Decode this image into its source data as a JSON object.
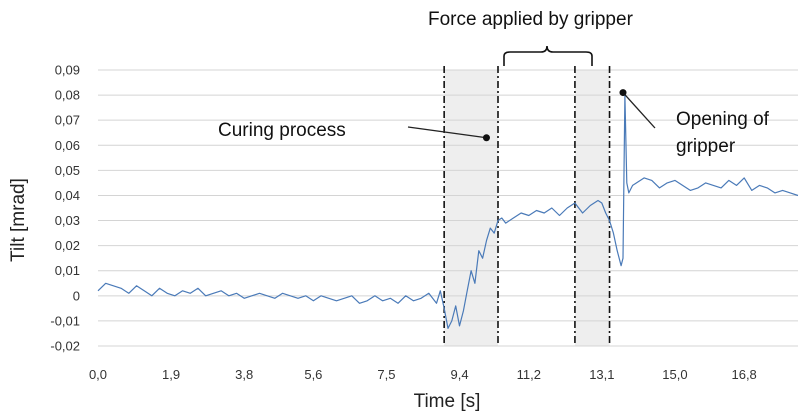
{
  "chart_data": {
    "type": "line",
    "xlabel": "Time [s]",
    "ylabel": "Tilt [mrad]",
    "ylim": [
      -0.02,
      0.09
    ],
    "xlim": [
      0.0,
      18.2
    ],
    "y_ticks": [
      -0.02,
      -0.01,
      0,
      0.01,
      0.02,
      0.03,
      0.04,
      0.05,
      0.06,
      0.07,
      0.08,
      0.09
    ],
    "y_tick_labels": [
      "-0,02",
      "-0,01",
      "0",
      "0,01",
      "0,02",
      "0,03",
      "0,04",
      "0,05",
      "0,06",
      "0,07",
      "0,08",
      "0,09"
    ],
    "x_ticks": [
      0.0,
      1.9,
      3.8,
      5.6,
      7.5,
      9.4,
      11.2,
      13.1,
      15.0,
      16.8
    ],
    "x_tick_labels": [
      "0,0",
      "1,9",
      "3,8",
      "5,6",
      "7,5",
      "9,4",
      "11,2",
      "13,1",
      "15,0",
      "16,8"
    ],
    "grid": "horizontal",
    "series": [
      {
        "color": "#4a7ab8",
        "x": [
          0.0,
          0.2,
          0.4,
          0.6,
          0.8,
          1.0,
          1.2,
          1.4,
          1.6,
          1.8,
          2.0,
          2.2,
          2.4,
          2.6,
          2.8,
          3.0,
          3.2,
          3.4,
          3.6,
          3.8,
          4.0,
          4.2,
          4.4,
          4.6,
          4.8,
          5.0,
          5.2,
          5.4,
          5.6,
          5.8,
          6.0,
          6.2,
          6.4,
          6.6,
          6.8,
          7.0,
          7.2,
          7.4,
          7.6,
          7.8,
          8.0,
          8.2,
          8.4,
          8.6,
          8.8,
          8.9,
          9.0,
          9.1,
          9.2,
          9.3,
          9.4,
          9.5,
          9.6,
          9.7,
          9.8,
          9.9,
          10.0,
          10.1,
          10.2,
          10.3,
          10.4,
          10.5,
          10.6,
          10.8,
          11.0,
          11.2,
          11.4,
          11.6,
          11.8,
          12.0,
          12.2,
          12.4,
          12.6,
          12.8,
          13.0,
          13.1,
          13.2,
          13.3,
          13.4,
          13.5,
          13.6,
          13.65,
          13.7,
          13.75,
          13.8,
          13.9,
          14.0,
          14.2,
          14.4,
          14.6,
          14.8,
          15.0,
          15.2,
          15.4,
          15.6,
          15.8,
          16.0,
          16.2,
          16.4,
          16.6,
          16.8,
          17.0,
          17.2,
          17.4,
          17.6,
          17.8,
          18.0,
          18.2
        ],
        "y": [
          0.002,
          0.005,
          0.004,
          0.003,
          0.001,
          0.004,
          0.002,
          0.0,
          0.003,
          0.001,
          0.0,
          0.002,
          0.001,
          0.003,
          0.0,
          0.001,
          0.002,
          0.0,
          0.001,
          -0.001,
          0.0,
          0.001,
          0.0,
          -0.001,
          0.001,
          0.0,
          -0.001,
          0.0,
          -0.002,
          0.0,
          -0.001,
          -0.002,
          -0.001,
          0.0,
          -0.003,
          -0.002,
          0.0,
          -0.002,
          -0.001,
          -0.003,
          0.0,
          -0.002,
          -0.001,
          0.001,
          -0.003,
          0.002,
          -0.005,
          -0.013,
          -0.01,
          -0.004,
          -0.012,
          -0.006,
          0.002,
          0.01,
          0.005,
          0.018,
          0.015,
          0.022,
          0.027,
          0.025,
          0.03,
          0.031,
          0.029,
          0.031,
          0.033,
          0.032,
          0.034,
          0.033,
          0.035,
          0.032,
          0.035,
          0.037,
          0.033,
          0.036,
          0.038,
          0.037,
          0.033,
          0.03,
          0.025,
          0.018,
          0.012,
          0.015,
          0.08,
          0.045,
          0.041,
          0.044,
          0.045,
          0.047,
          0.046,
          0.043,
          0.045,
          0.046,
          0.044,
          0.042,
          0.043,
          0.045,
          0.044,
          0.043,
          0.046,
          0.044,
          0.047,
          0.042,
          0.044,
          0.043,
          0.041,
          0.042,
          0.041,
          0.04
        ]
      }
    ],
    "shaded_regions": [
      [
        9.0,
        10.4
      ],
      [
        12.4,
        13.3
      ]
    ],
    "vertical_lines": [
      9.0,
      10.4,
      12.4,
      13.3
    ],
    "annotations": {
      "curing": "Curing process",
      "force": "Force applied by gripper",
      "opening_line1": "Opening of",
      "opening_line2": "gripper"
    },
    "annotation_points": {
      "curing": [
        10.1,
        0.063
      ],
      "opening": [
        13.65,
        0.081
      ]
    }
  }
}
